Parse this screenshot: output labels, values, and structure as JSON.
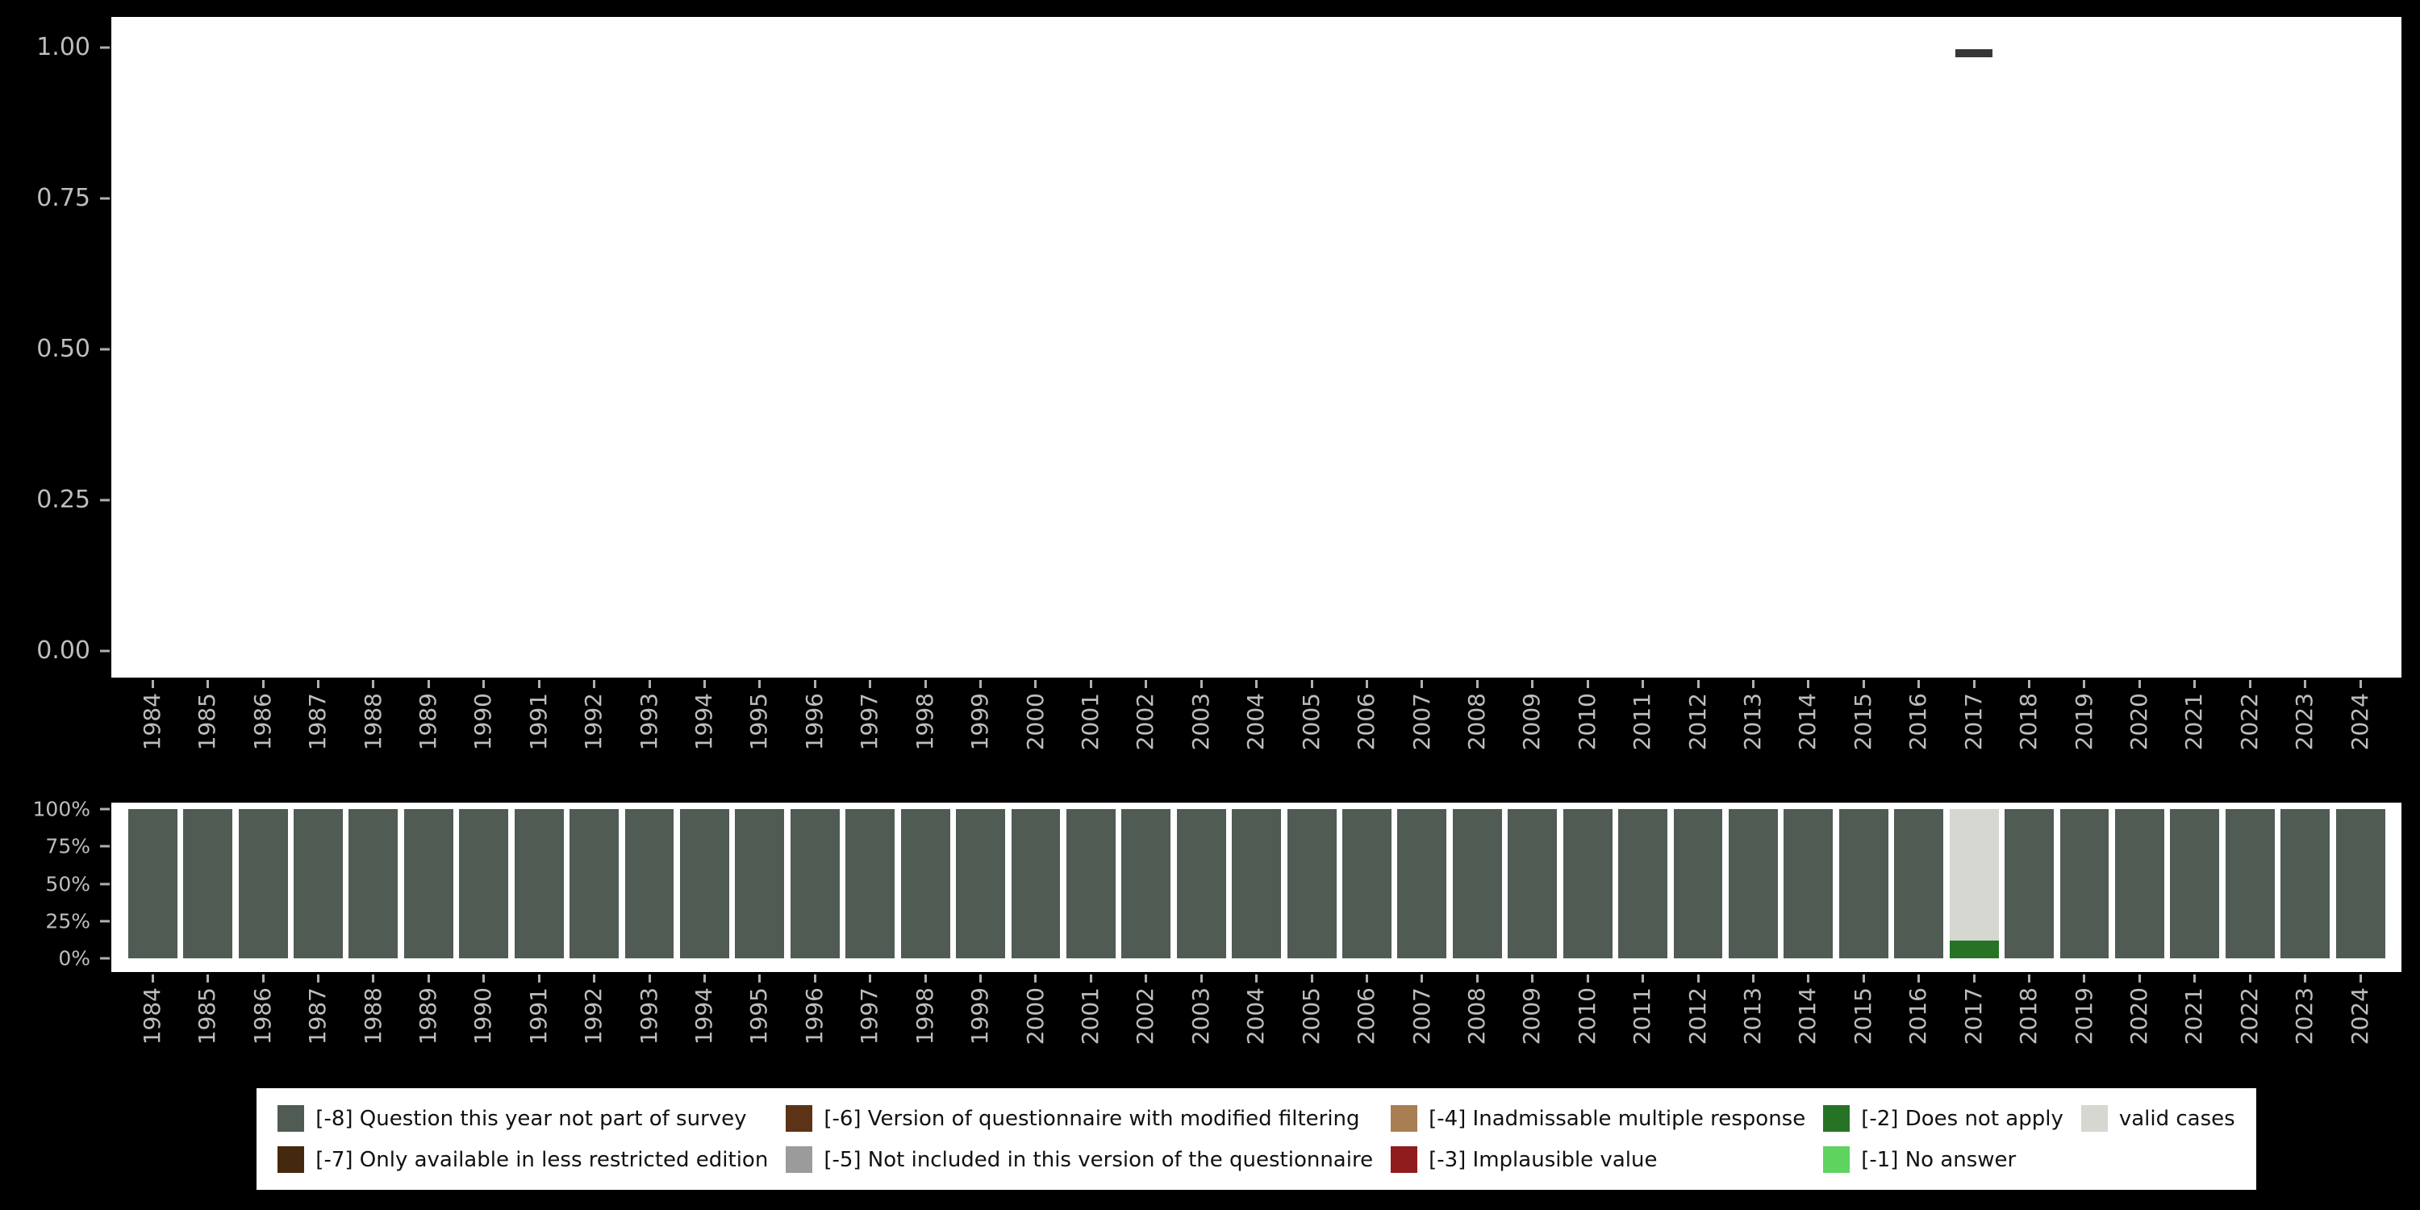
{
  "colors": {
    "background": "#000000",
    "panel_background": "#ffffff",
    "axis_text": "#bdbdbd",
    "axis_tick": "#b0b0b0",
    "point_marker": "#373737",
    "legend_background": "#ffffff",
    "legend_text": "#111111"
  },
  "chart_data": [
    {
      "type": "scatter",
      "title": "",
      "xlabel": "",
      "ylabel": "",
      "marker": "horizontal-dash",
      "grid": false,
      "ylim": [
        0.0,
        1.0
      ],
      "y_ticks": [
        {
          "label": "1.00",
          "value": 1.0
        },
        {
          "label": "0.75",
          "value": 0.75
        },
        {
          "label": "0.50",
          "value": 0.5
        },
        {
          "label": "0.25",
          "value": 0.25
        },
        {
          "label": "0.00",
          "value": 0.0
        }
      ],
      "categories": [
        "1984",
        "1985",
        "1986",
        "1987",
        "1988",
        "1989",
        "1990",
        "1991",
        "1992",
        "1993",
        "1994",
        "1995",
        "1996",
        "1997",
        "1998",
        "1999",
        "2000",
        "2001",
        "2002",
        "2003",
        "2004",
        "2005",
        "2006",
        "2007",
        "2008",
        "2009",
        "2010",
        "2011",
        "2012",
        "2013",
        "2014",
        "2015",
        "2016",
        "2017",
        "2018",
        "2019",
        "2020",
        "2021",
        "2022",
        "2023",
        "2024"
      ],
      "points": [
        {
          "x": "2017",
          "y": 0.99
        }
      ]
    },
    {
      "type": "bar",
      "stacked": true,
      "unit": "percent",
      "title": "",
      "xlabel": "",
      "ylabel": "",
      "grid": false,
      "ylim": [
        0,
        100
      ],
      "y_ticks": [
        {
          "label": "100%",
          "value": 100
        },
        {
          "label": "75%",
          "value": 75
        },
        {
          "label": "50%",
          "value": 50
        },
        {
          "label": "25%",
          "value": 25
        },
        {
          "label": "0%",
          "value": 0
        }
      ],
      "categories": [
        "1984",
        "1985",
        "1986",
        "1987",
        "1988",
        "1989",
        "1990",
        "1991",
        "1992",
        "1993",
        "1994",
        "1995",
        "1996",
        "1997",
        "1998",
        "1999",
        "2000",
        "2001",
        "2002",
        "2003",
        "2004",
        "2005",
        "2006",
        "2007",
        "2008",
        "2009",
        "2010",
        "2011",
        "2012",
        "2013",
        "2014",
        "2015",
        "2016",
        "2017",
        "2018",
        "2019",
        "2020",
        "2021",
        "2022",
        "2023",
        "2024"
      ],
      "series": [
        {
          "name": "[-8] Question this year not part of survey",
          "color": "#4f5b53",
          "values": [
            100,
            100,
            100,
            100,
            100,
            100,
            100,
            100,
            100,
            100,
            100,
            100,
            100,
            100,
            100,
            100,
            100,
            100,
            100,
            100,
            100,
            100,
            100,
            100,
            100,
            100,
            100,
            100,
            100,
            100,
            100,
            100,
            100,
            0,
            100,
            100,
            100,
            100,
            100,
            100,
            100
          ]
        },
        {
          "name": "[-2] Does not apply",
          "color": "#267326",
          "values": [
            0,
            0,
            0,
            0,
            0,
            0,
            0,
            0,
            0,
            0,
            0,
            0,
            0,
            0,
            0,
            0,
            0,
            0,
            0,
            0,
            0,
            0,
            0,
            0,
            0,
            0,
            0,
            0,
            0,
            0,
            0,
            0,
            0,
            12,
            0,
            0,
            0,
            0,
            0,
            0,
            0
          ]
        },
        {
          "name": "valid cases",
          "color": "#d5d7d0",
          "values": [
            0,
            0,
            0,
            0,
            0,
            0,
            0,
            0,
            0,
            0,
            0,
            0,
            0,
            0,
            0,
            0,
            0,
            0,
            0,
            0,
            0,
            0,
            0,
            0,
            0,
            0,
            0,
            0,
            0,
            0,
            0,
            0,
            0,
            88,
            0,
            0,
            0,
            0,
            0,
            0,
            0
          ]
        }
      ]
    }
  ],
  "legend": {
    "items": [
      {
        "label": "[-8] Question this year not part of survey",
        "color": "#4f5b53"
      },
      {
        "label": "[-7] Only available in less restricted edition",
        "color": "#45290f"
      },
      {
        "label": "[-6] Version of questionnaire with modified filtering",
        "color": "#5c3317"
      },
      {
        "label": "[-5] Not included in this version of the questionnaire",
        "color": "#9b9b9b"
      },
      {
        "label": "[-4] Inadmissable multiple response",
        "color": "#a87e52"
      },
      {
        "label": "[-3] Implausible value",
        "color": "#8f1d1d"
      },
      {
        "label": "[-2] Does not apply",
        "color": "#267326"
      },
      {
        "label": "[-1] No answer",
        "color": "#5fd35f"
      },
      {
        "label": "valid cases",
        "color": "#d5d7d0"
      }
    ]
  }
}
